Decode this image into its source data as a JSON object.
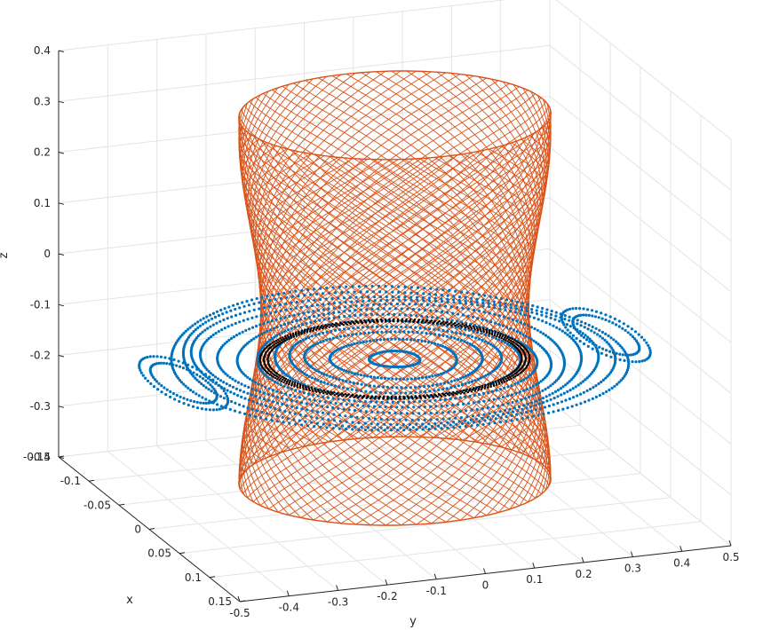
{
  "chart_data": {
    "type": "3d-line",
    "title": "",
    "xlabel": "x",
    "ylabel": "y",
    "zlabel": "z",
    "xlim": [
      -0.15,
      0.15
    ],
    "ylim": [
      -0.5,
      0.5
    ],
    "zlim": [
      -0.4,
      0.4
    ],
    "grid": true,
    "x_ticks": [
      "-0.15",
      "-0.1",
      "-0.05",
      "0",
      "0.05",
      "0.1",
      "0.15"
    ],
    "y_ticks": [
      "-0.5",
      "-0.4",
      "-0.3",
      "-0.2",
      "-0.1",
      "0",
      "0.1",
      "0.2",
      "0.3",
      "0.4",
      "0.5"
    ],
    "z_ticks": [
      "-0.4",
      "-0.3",
      "-0.2",
      "-0.1",
      "0",
      "0.1",
      "0.2",
      "0.3",
      "0.4"
    ],
    "x_tick_values": [
      -0.15,
      -0.1,
      -0.05,
      0,
      0.05,
      0.1,
      0.15
    ],
    "y_tick_values": [
      -0.5,
      -0.4,
      -0.3,
      -0.2,
      -0.1,
      0,
      0.1,
      0.2,
      0.3,
      0.4,
      0.5
    ],
    "z_tick_values": [
      -0.4,
      -0.3,
      -0.2,
      -0.1,
      0,
      0.1,
      0.2,
      0.3,
      0.4
    ],
    "series": [
      {
        "style": "line",
        "color": "#D95319",
        "description": "hourglass-shaped wireframe surface",
        "z_range": [
          -0.36,
          0.36
        ],
        "waist_radius_x": 0.072,
        "waist_radius_y": 0.26,
        "end_radius_x": 0.085,
        "end_radius_y": 0.3
      },
      {
        "style": "points",
        "color": "#0072BD",
        "description": "planar rings and islands near z = -0.12",
        "z": -0.12,
        "ring_scales": [
          0.12,
          0.3,
          0.42,
          0.5,
          0.58,
          0.66,
          0.74,
          0.82,
          0.9,
          0.96,
          1.02,
          1.08
        ],
        "outer_radius_x": 0.13,
        "outer_radius_y": 0.4,
        "island_y": [
          0.4,
          -0.4
        ]
      },
      {
        "style": "points",
        "color": "#000000",
        "description": "dense ring on the surface waist",
        "z": -0.12,
        "radius_x": 0.075,
        "radius_y": 0.25
      }
    ]
  }
}
